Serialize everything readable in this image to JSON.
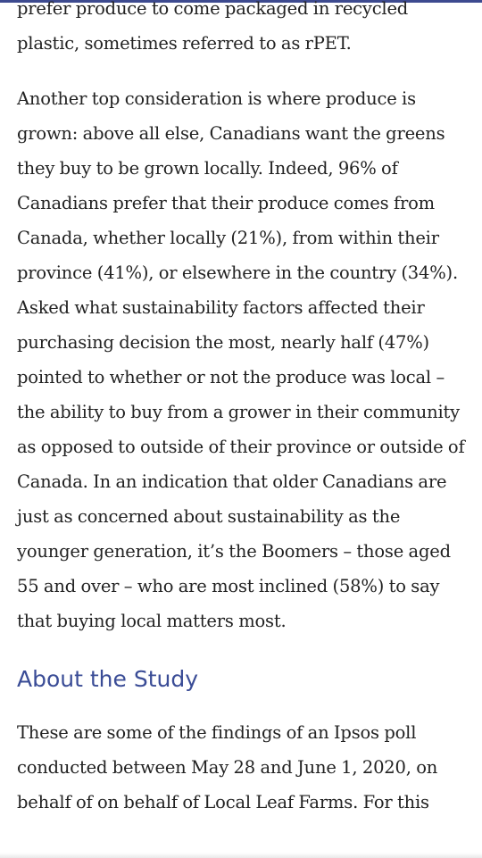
{
  "article": {
    "paragraph_1": "prefer produce to come packaged in recycled plastic, sometimes referred to as rPET.",
    "paragraph_2": "Another top consideration is where produce is grown: above all else, Canadians want the greens they buy to be grown locally. Indeed, 96% of Canadians prefer that their produce comes from Canada, whether locally (21%), from within their province (41%), or elsewhere in the country (34%). Asked what sustainability factors affected their purchasing decision the most, nearly half (47%) pointed to whether or not the produce was local – the ability to buy from a grower in their community as opposed to outside of their province or outside of Canada. In an indication that older Canadians are just as concerned about sustainability as the younger generation, it’s the Boomers – those aged 55 and over – who are most inclined (58%) to say that buying local matters most.",
    "section_heading": "About the Study",
    "paragraph_3": "These are some of the findings of an Ipsos poll conducted between May 28 and June 1, 2020, on behalf of on behalf of Local Leaf Farms. For this"
  },
  "colors": {
    "heading": "#3a4c96",
    "body_text": "#222222",
    "top_accent": "#3d4a8f"
  }
}
